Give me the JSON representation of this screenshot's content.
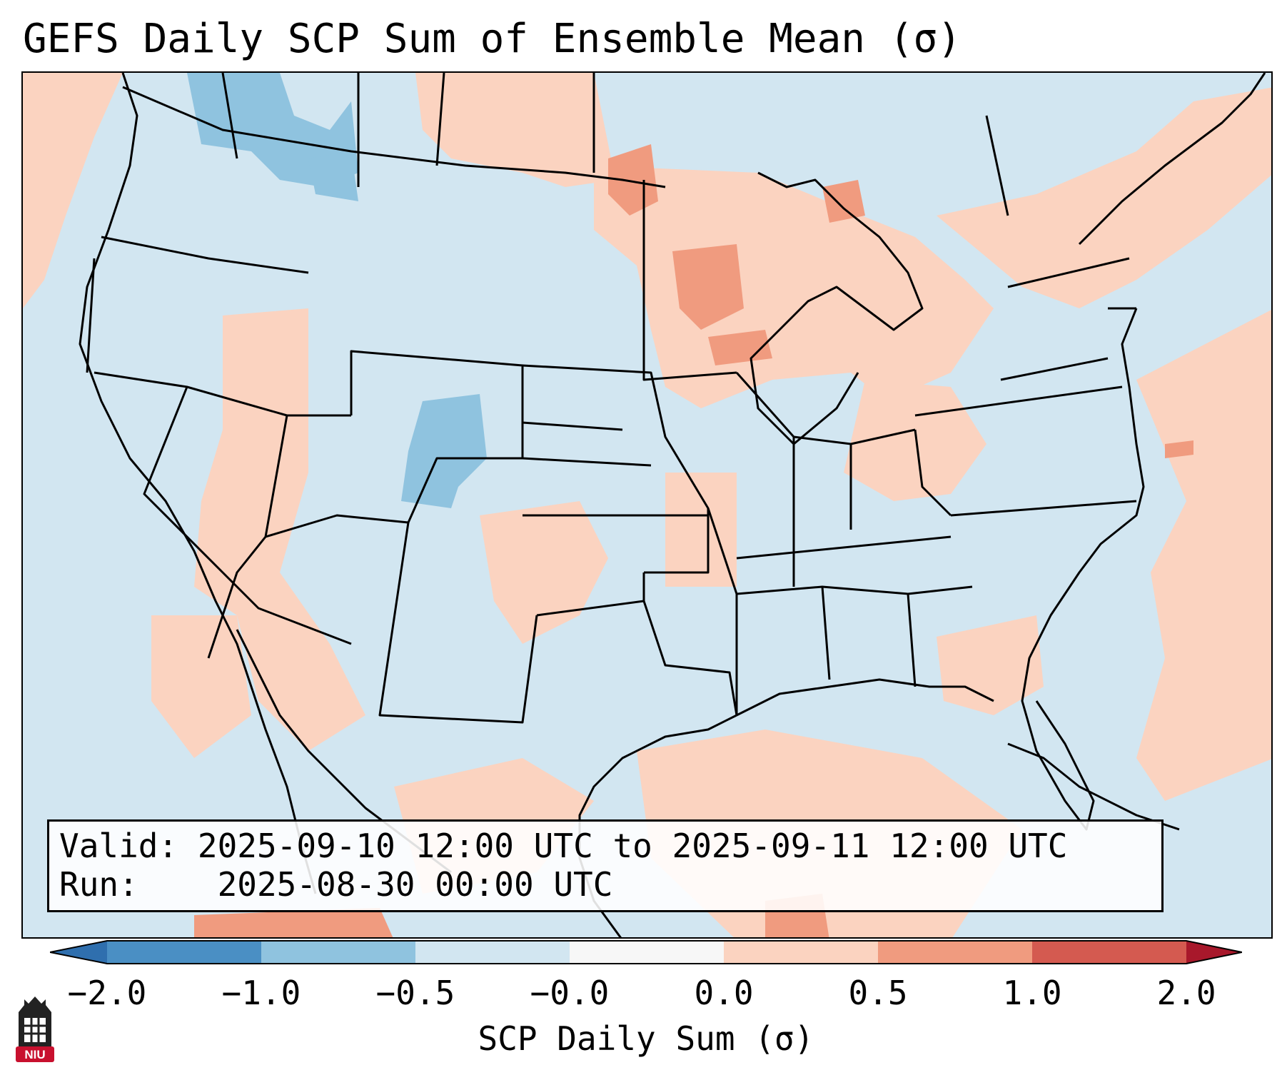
{
  "title": "GEFS Daily SCP Sum of Ensemble Mean (σ)",
  "valid_label": "Valid:",
  "valid_text": "2025-09-10 12:00 UTC to 2025-09-11 12:00 UTC",
  "run_label": "Run:",
  "run_text": "2025-08-30 00:00 UTC",
  "colorbar": {
    "label": "SCP Daily Sum (σ)",
    "ticks": [
      "−2.0",
      "−1.0",
      "−0.5",
      "−0.0",
      "0.0",
      "0.5",
      "1.0",
      "2.0"
    ],
    "colors": [
      "#4a8fc4",
      "#8fc3df",
      "#d2e6f1",
      "#f7f7f7",
      "#fbd3c0",
      "#f09b7f",
      "#d45a50"
    ],
    "under_color": "#2f6fae",
    "over_color": "#a8182b"
  },
  "palette": {
    "background": "#d2e6f1",
    "light_pos": "#fbd3c0",
    "mid_pos": "#f09b7f",
    "strong_pos": "#d45a50",
    "light_neg": "#8fc3df"
  },
  "logo": {
    "text": "NIU",
    "color": "#c8102e"
  }
}
